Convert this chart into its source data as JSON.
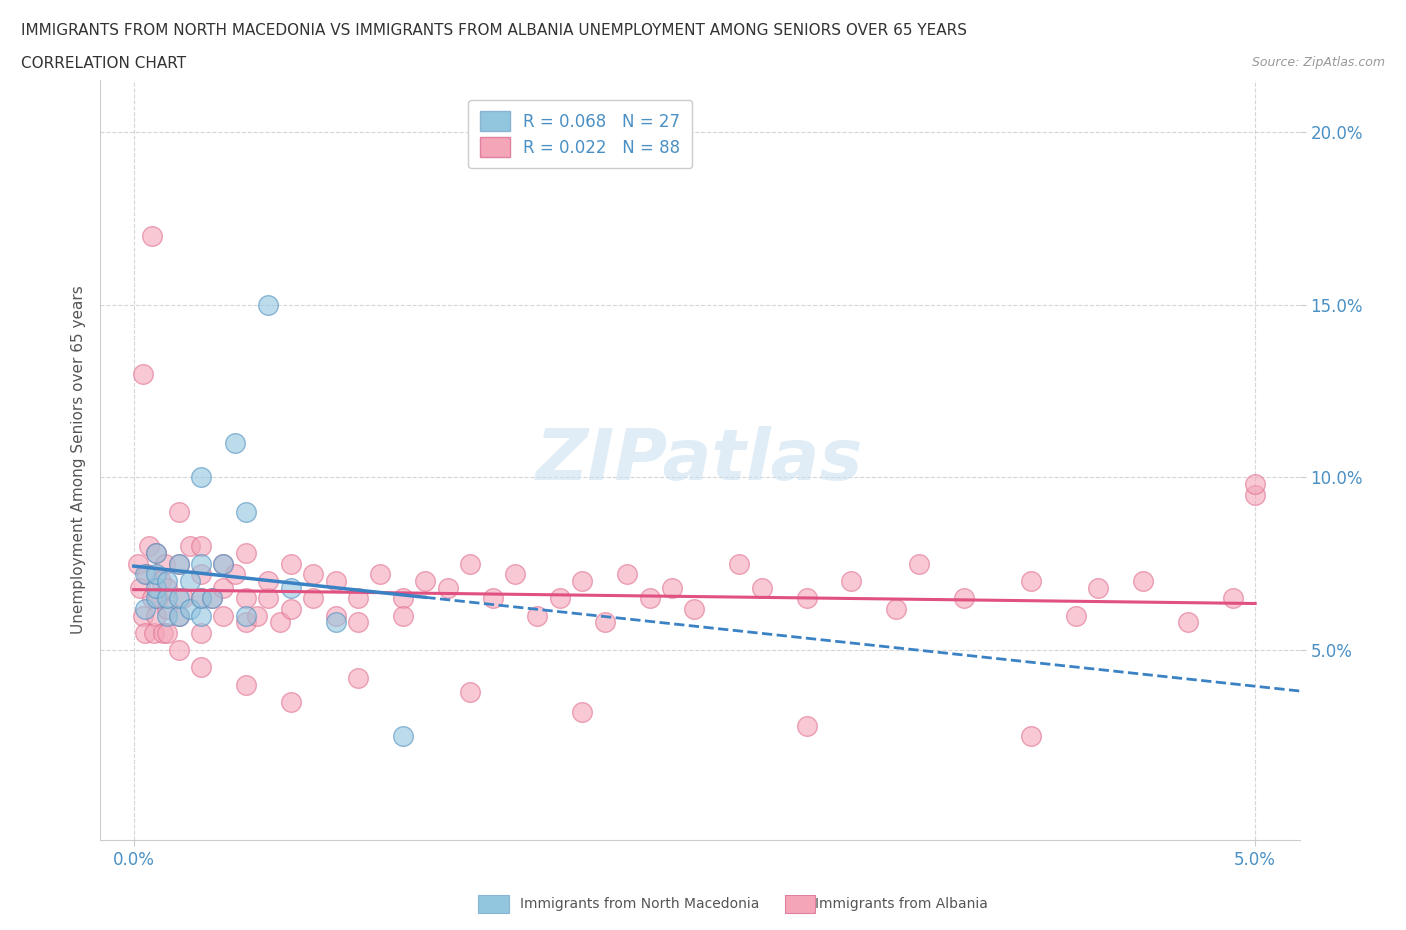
{
  "title_line1": "IMMIGRANTS FROM NORTH MACEDONIA VS IMMIGRANTS FROM ALBANIA UNEMPLOYMENT AMONG SENIORS OVER 65 YEARS",
  "title_line2": "CORRELATION CHART",
  "source_text": "Source: ZipAtlas.com",
  "ylabel": "Unemployment Among Seniors over 65 years",
  "xlim": [
    -0.0015,
    0.052
  ],
  "ylim": [
    -0.005,
    0.215
  ],
  "yticks": [
    0.05,
    0.1,
    0.15,
    0.2
  ],
  "ytick_labels": [
    "5.0%",
    "10.0%",
    "15.0%",
    "20.0%"
  ],
  "xticks": [
    0.0,
    0.05
  ],
  "xtick_labels": [
    "0.0%",
    "5.0%"
  ],
  "legend_label_nm": "R = 0.068   N = 27",
  "legend_label_al": "R = 0.022   N = 88",
  "watermark": "ZIPatlas",
  "color_north_macedonia": "#92c5de",
  "color_albania": "#f4a6b8",
  "trendline_color_north_macedonia": "#3b82c4",
  "trendline_color_albania": "#e05080",
  "north_macedonia_x": [
    0.0005,
    0.0005,
    0.001,
    0.001,
    0.001,
    0.001,
    0.0015,
    0.0015,
    0.0015,
    0.002,
    0.002,
    0.002,
    0.0025,
    0.0025,
    0.003,
    0.003,
    0.003,
    0.003,
    0.0035,
    0.004,
    0.0045,
    0.005,
    0.005,
    0.006,
    0.007,
    0.009,
    0.012
  ],
  "north_macedonia_y": [
    0.072,
    0.062,
    0.065,
    0.068,
    0.072,
    0.078,
    0.06,
    0.065,
    0.07,
    0.06,
    0.065,
    0.075,
    0.062,
    0.07,
    0.06,
    0.065,
    0.075,
    0.1,
    0.065,
    0.075,
    0.11,
    0.06,
    0.09,
    0.15,
    0.068,
    0.058,
    0.025
  ],
  "albania_x": [
    0.0002,
    0.0003,
    0.0004,
    0.0005,
    0.0006,
    0.0007,
    0.0008,
    0.0009,
    0.001,
    0.001,
    0.0011,
    0.0012,
    0.0013,
    0.0014,
    0.0015,
    0.0015,
    0.002,
    0.002,
    0.002,
    0.0022,
    0.0025,
    0.003,
    0.003,
    0.003,
    0.003,
    0.0035,
    0.004,
    0.004,
    0.004,
    0.0045,
    0.005,
    0.005,
    0.005,
    0.0055,
    0.006,
    0.006,
    0.0065,
    0.007,
    0.007,
    0.008,
    0.008,
    0.009,
    0.009,
    0.01,
    0.01,
    0.011,
    0.012,
    0.012,
    0.013,
    0.014,
    0.015,
    0.016,
    0.017,
    0.018,
    0.019,
    0.02,
    0.021,
    0.022,
    0.023,
    0.024,
    0.025,
    0.027,
    0.028,
    0.03,
    0.032,
    0.034,
    0.035,
    0.037,
    0.04,
    0.042,
    0.043,
    0.045,
    0.047,
    0.049,
    0.05,
    0.0004,
    0.0008,
    0.0015,
    0.002,
    0.003,
    0.005,
    0.007,
    0.01,
    0.015,
    0.02,
    0.03,
    0.04,
    0.05
  ],
  "albania_y": [
    0.075,
    0.068,
    0.06,
    0.055,
    0.072,
    0.08,
    0.065,
    0.055,
    0.06,
    0.078,
    0.065,
    0.07,
    0.055,
    0.075,
    0.062,
    0.068,
    0.06,
    0.075,
    0.09,
    0.065,
    0.08,
    0.055,
    0.065,
    0.072,
    0.08,
    0.065,
    0.06,
    0.075,
    0.068,
    0.072,
    0.058,
    0.065,
    0.078,
    0.06,
    0.065,
    0.07,
    0.058,
    0.062,
    0.075,
    0.065,
    0.072,
    0.06,
    0.07,
    0.065,
    0.058,
    0.072,
    0.065,
    0.06,
    0.07,
    0.068,
    0.075,
    0.065,
    0.072,
    0.06,
    0.065,
    0.07,
    0.058,
    0.072,
    0.065,
    0.068,
    0.062,
    0.075,
    0.068,
    0.065,
    0.07,
    0.062,
    0.075,
    0.065,
    0.07,
    0.06,
    0.068,
    0.07,
    0.058,
    0.065,
    0.095,
    0.13,
    0.17,
    0.055,
    0.05,
    0.045,
    0.04,
    0.035,
    0.042,
    0.038,
    0.032,
    0.028,
    0.025,
    0.098
  ]
}
